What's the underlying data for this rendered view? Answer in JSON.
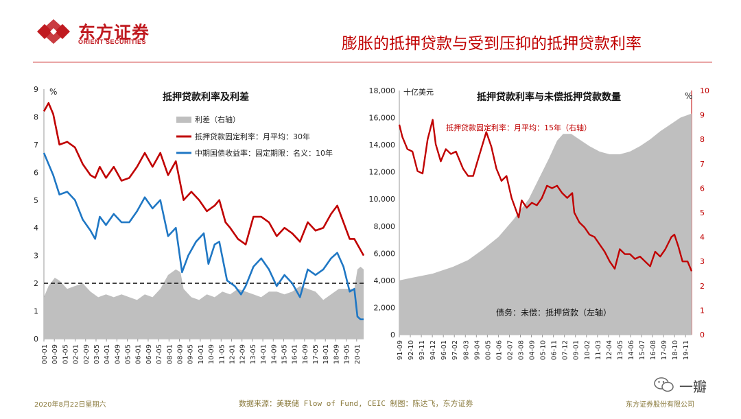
{
  "header": {
    "logo_cn": "东方证券",
    "logo_en": "ORIENT SECURITIES",
    "title": "膨胀的抵押贷款与受到压抑的抵押贷款利率"
  },
  "footer": {
    "date": "2020年8月22日星期六",
    "source": "数据来源：美联储 Flow of Fund, CEIC  制图：陈达飞，东方证券",
    "company": "东方证券股份有限公司",
    "watermark": "一瓣"
  },
  "colors": {
    "brand_red": "#c01a20",
    "series_red": "#c00000",
    "series_blue": "#1f77c4",
    "area_gray": "#bfbfbf",
    "footer_text": "#8a7a3c"
  },
  "chart_data": [
    {
      "type": "line",
      "title": "抵押贷款利率及利差",
      "y_unit": "%",
      "ylim": [
        0,
        9
      ],
      "y_ticks": [
        "0",
        "1",
        "2",
        "3",
        "4",
        "5",
        "6",
        "7",
        "8",
        "9"
      ],
      "x_ticks": [
        "00-01",
        "00-09",
        "01-05",
        "02-01",
        "02-09",
        "03-05",
        "04-01",
        "04-09",
        "05-05",
        "06-01",
        "06-09",
        "07-05",
        "08-01",
        "08-09",
        "09-05",
        "10-01",
        "10-09",
        "11-05",
        "12-01",
        "12-09",
        "13-05",
        "14-01",
        "14-09",
        "15-05",
        "16-01",
        "16-09",
        "17-05",
        "18-01",
        "18-09",
        "19-05",
        "20-01"
      ],
      "x_range": [
        2000.0,
        2020.6
      ],
      "reference_line": {
        "y": 2,
        "style": "dashed"
      },
      "legend": [
        "利差（右轴）",
        "抵押贷款固定利率：月平均：30年",
        "中期国债收益率：固定期限：名义：10年"
      ],
      "series": [
        {
          "name": "利差（右轴）",
          "kind": "area",
          "color": "#bfbfbf",
          "points": [
            [
              2000.0,
              1.5
            ],
            [
              2000.3,
              1.9
            ],
            [
              2000.7,
              2.2
            ],
            [
              2001.0,
              2.1
            ],
            [
              2001.5,
              1.8
            ],
            [
              2002.0,
              1.9
            ],
            [
              2002.5,
              2.0
            ],
            [
              2003.0,
              1.7
            ],
            [
              2003.5,
              1.5
            ],
            [
              2004.0,
              1.6
            ],
            [
              2004.5,
              1.5
            ],
            [
              2005.0,
              1.6
            ],
            [
              2005.5,
              1.5
            ],
            [
              2006.0,
              1.4
            ],
            [
              2006.5,
              1.6
            ],
            [
              2007.0,
              1.5
            ],
            [
              2007.5,
              1.8
            ],
            [
              2008.0,
              2.3
            ],
            [
              2008.5,
              2.5
            ],
            [
              2008.8,
              2.4
            ],
            [
              2009.0,
              1.8
            ],
            [
              2009.5,
              1.5
            ],
            [
              2010.0,
              1.4
            ],
            [
              2010.5,
              1.6
            ],
            [
              2011.0,
              1.5
            ],
            [
              2011.5,
              1.7
            ],
            [
              2012.0,
              1.6
            ],
            [
              2012.5,
              1.8
            ],
            [
              2013.0,
              1.7
            ],
            [
              2013.5,
              1.6
            ],
            [
              2014.0,
              1.5
            ],
            [
              2014.5,
              1.7
            ],
            [
              2015.0,
              1.7
            ],
            [
              2015.5,
              1.6
            ],
            [
              2016.0,
              1.7
            ],
            [
              2016.5,
              1.9
            ],
            [
              2017.0,
              1.8
            ],
            [
              2017.5,
              1.7
            ],
            [
              2018.0,
              1.4
            ],
            [
              2018.5,
              1.6
            ],
            [
              2019.0,
              1.8
            ],
            [
              2019.5,
              1.8
            ],
            [
              2020.0,
              1.8
            ],
            [
              2020.2,
              2.5
            ],
            [
              2020.4,
              2.6
            ],
            [
              2020.6,
              2.5
            ]
          ]
        },
        {
          "name": "抵押贷款固定利率：月平均：30年",
          "kind": "line",
          "color": "#c00000",
          "points": [
            [
              2000.0,
              8.2
            ],
            [
              2000.3,
              8.5
            ],
            [
              2000.6,
              8.1
            ],
            [
              2001.0,
              7.0
            ],
            [
              2001.5,
              7.1
            ],
            [
              2002.0,
              6.9
            ],
            [
              2002.5,
              6.3
            ],
            [
              2003.0,
              5.9
            ],
            [
              2003.3,
              5.8
            ],
            [
              2003.6,
              6.2
            ],
            [
              2004.0,
              5.8
            ],
            [
              2004.5,
              6.2
            ],
            [
              2005.0,
              5.7
            ],
            [
              2005.5,
              5.8
            ],
            [
              2006.0,
              6.2
            ],
            [
              2006.5,
              6.7
            ],
            [
              2007.0,
              6.2
            ],
            [
              2007.5,
              6.7
            ],
            [
              2008.0,
              5.9
            ],
            [
              2008.5,
              6.4
            ],
            [
              2009.0,
              5.0
            ],
            [
              2009.5,
              5.3
            ],
            [
              2010.0,
              5.0
            ],
            [
              2010.5,
              4.6
            ],
            [
              2011.0,
              4.8
            ],
            [
              2011.3,
              5.0
            ],
            [
              2011.7,
              4.2
            ],
            [
              2012.0,
              4.0
            ],
            [
              2012.5,
              3.6
            ],
            [
              2013.0,
              3.4
            ],
            [
              2013.5,
              4.4
            ],
            [
              2014.0,
              4.4
            ],
            [
              2014.5,
              4.2
            ],
            [
              2015.0,
              3.7
            ],
            [
              2015.5,
              4.0
            ],
            [
              2016.0,
              3.8
            ],
            [
              2016.5,
              3.5
            ],
            [
              2017.0,
              4.2
            ],
            [
              2017.5,
              3.9
            ],
            [
              2018.0,
              4.0
            ],
            [
              2018.5,
              4.5
            ],
            [
              2018.9,
              4.8
            ],
            [
              2019.3,
              4.2
            ],
            [
              2019.7,
              3.6
            ],
            [
              2020.0,
              3.6
            ],
            [
              2020.3,
              3.3
            ],
            [
              2020.6,
              3.0
            ]
          ]
        },
        {
          "name": "中期国债收益率：固定期限：名义：10年",
          "kind": "line",
          "color": "#1f77c4",
          "points": [
            [
              2000.0,
              6.7
            ],
            [
              2000.3,
              6.3
            ],
            [
              2000.6,
              5.9
            ],
            [
              2001.0,
              5.2
            ],
            [
              2001.5,
              5.3
            ],
            [
              2002.0,
              5.0
            ],
            [
              2002.5,
              4.3
            ],
            [
              2003.0,
              3.9
            ],
            [
              2003.3,
              3.6
            ],
            [
              2003.6,
              4.4
            ],
            [
              2004.0,
              4.1
            ],
            [
              2004.5,
              4.5
            ],
            [
              2005.0,
              4.2
            ],
            [
              2005.5,
              4.2
            ],
            [
              2006.0,
              4.6
            ],
            [
              2006.5,
              5.1
            ],
            [
              2007.0,
              4.7
            ],
            [
              2007.5,
              5.0
            ],
            [
              2008.0,
              3.7
            ],
            [
              2008.5,
              4.0
            ],
            [
              2008.9,
              2.4
            ],
            [
              2009.3,
              3.0
            ],
            [
              2009.8,
              3.5
            ],
            [
              2010.3,
              3.8
            ],
            [
              2010.6,
              2.7
            ],
            [
              2011.0,
              3.4
            ],
            [
              2011.3,
              3.5
            ],
            [
              2011.8,
              2.1
            ],
            [
              2012.3,
              1.9
            ],
            [
              2012.7,
              1.6
            ],
            [
              2013.0,
              1.9
            ],
            [
              2013.5,
              2.6
            ],
            [
              2014.0,
              2.9
            ],
            [
              2014.5,
              2.5
            ],
            [
              2015.0,
              1.9
            ],
            [
              2015.5,
              2.3
            ],
            [
              2016.0,
              2.0
            ],
            [
              2016.5,
              1.5
            ],
            [
              2017.0,
              2.5
            ],
            [
              2017.5,
              2.3
            ],
            [
              2018.0,
              2.5
            ],
            [
              2018.5,
              2.9
            ],
            [
              2018.9,
              3.1
            ],
            [
              2019.3,
              2.6
            ],
            [
              2019.7,
              1.7
            ],
            [
              2020.0,
              1.8
            ],
            [
              2020.2,
              0.8
            ],
            [
              2020.4,
              0.7
            ],
            [
              2020.6,
              0.7
            ]
          ]
        }
      ]
    },
    {
      "type": "area",
      "title": "抵押贷款利率与未偿抵押贷款数量",
      "y_left_unit": "十亿美元",
      "y_right_unit": "%",
      "ylim_left": [
        0,
        18000
      ],
      "ylim_right": [
        0,
        10
      ],
      "y_left_ticks": [
        "0",
        "2,000",
        "4,000",
        "6,000",
        "8,000",
        "10,000",
        "12,000",
        "14,000",
        "16,000",
        "18,000"
      ],
      "y_right_ticks": [
        "0",
        "1",
        "2",
        "3",
        "4",
        "5",
        "6",
        "7",
        "8",
        "9",
        "10"
      ],
      "x_ticks": [
        "91-09",
        "92-10",
        "93-11",
        "94-12",
        "96-01",
        "97-02",
        "98-03",
        "99-04",
        "00-05",
        "01-06",
        "02-07",
        "03-08",
        "04-09",
        "05-10",
        "06-11",
        "07-12",
        "09-01",
        "10-02",
        "11-03",
        "12-04",
        "13-05",
        "14-06",
        "15-07",
        "16-08",
        "17-09",
        "18-10",
        "19-11"
      ],
      "x_range": [
        1991.7,
        2020.6
      ],
      "annotations": [
        "抵押贷款固定利率：月平均：15年（右轴）",
        "债务：未偿：抵押贷款（左轴）"
      ],
      "series": [
        {
          "name": "债务：未偿：抵押贷款（左轴）",
          "kind": "area",
          "axis": "left",
          "color": "#bfbfbf",
          "points": [
            [
              1991.7,
              4000
            ],
            [
              1993.0,
              4200
            ],
            [
              1995.0,
              4500
            ],
            [
              1997.0,
              5000
            ],
            [
              1998.5,
              5500
            ],
            [
              2000.0,
              6300
            ],
            [
              2001.5,
              7200
            ],
            [
              2003.0,
              8500
            ],
            [
              2004.5,
              10000
            ],
            [
              2005.5,
              11500
            ],
            [
              2006.5,
              13000
            ],
            [
              2007.3,
              14300
            ],
            [
              2007.9,
              14800
            ],
            [
              2008.7,
              14800
            ],
            [
              2009.5,
              14400
            ],
            [
              2010.5,
              13900
            ],
            [
              2011.5,
              13500
            ],
            [
              2012.5,
              13300
            ],
            [
              2013.5,
              13300
            ],
            [
              2014.5,
              13500
            ],
            [
              2015.5,
              13900
            ],
            [
              2016.5,
              14400
            ],
            [
              2017.5,
              15000
            ],
            [
              2018.5,
              15500
            ],
            [
              2019.5,
              16000
            ],
            [
              2020.6,
              16300
            ]
          ]
        },
        {
          "name": "抵押贷款固定利率：月平均：15年（右轴）",
          "kind": "line",
          "axis": "right",
          "color": "#c00000",
          "points": [
            [
              1991.7,
              8.6
            ],
            [
              1992.0,
              8.1
            ],
            [
              1992.5,
              7.6
            ],
            [
              1993.0,
              7.5
            ],
            [
              1993.5,
              6.7
            ],
            [
              1994.0,
              6.6
            ],
            [
              1994.5,
              8.0
            ],
            [
              1995.0,
              8.8
            ],
            [
              1995.3,
              7.8
            ],
            [
              1995.8,
              7.1
            ],
            [
              1996.3,
              7.6
            ],
            [
              1996.8,
              7.4
            ],
            [
              1997.3,
              7.5
            ],
            [
              1998.0,
              6.8
            ],
            [
              1998.5,
              6.5
            ],
            [
              1999.0,
              6.5
            ],
            [
              1999.5,
              7.2
            ],
            [
              2000.3,
              8.3
            ],
            [
              2000.8,
              7.7
            ],
            [
              2001.3,
              6.8
            ],
            [
              2001.8,
              6.3
            ],
            [
              2002.3,
              6.5
            ],
            [
              2002.8,
              5.6
            ],
            [
              2003.5,
              4.8
            ],
            [
              2003.8,
              5.5
            ],
            [
              2004.3,
              5.2
            ],
            [
              2004.8,
              5.4
            ],
            [
              2005.3,
              5.3
            ],
            [
              2005.8,
              5.6
            ],
            [
              2006.3,
              6.1
            ],
            [
              2006.8,
              6.0
            ],
            [
              2007.3,
              6.1
            ],
            [
              2007.8,
              5.8
            ],
            [
              2008.3,
              5.6
            ],
            [
              2008.8,
              5.8
            ],
            [
              2009.0,
              5.0
            ],
            [
              2009.5,
              4.6
            ],
            [
              2010.0,
              4.4
            ],
            [
              2010.5,
              4.1
            ],
            [
              2011.0,
              4.0
            ],
            [
              2011.5,
              3.7
            ],
            [
              2012.0,
              3.4
            ],
            [
              2012.5,
              3.0
            ],
            [
              2013.0,
              2.7
            ],
            [
              2013.5,
              3.5
            ],
            [
              2014.0,
              3.3
            ],
            [
              2014.5,
              3.3
            ],
            [
              2015.0,
              3.1
            ],
            [
              2015.5,
              3.2
            ],
            [
              2016.0,
              3.0
            ],
            [
              2016.5,
              2.8
            ],
            [
              2017.0,
              3.4
            ],
            [
              2017.5,
              3.2
            ],
            [
              2018.0,
              3.5
            ],
            [
              2018.6,
              4.0
            ],
            [
              2018.9,
              4.1
            ],
            [
              2019.3,
              3.6
            ],
            [
              2019.7,
              3.0
            ],
            [
              2020.2,
              3.0
            ],
            [
              2020.6,
              2.6
            ]
          ]
        }
      ]
    }
  ]
}
